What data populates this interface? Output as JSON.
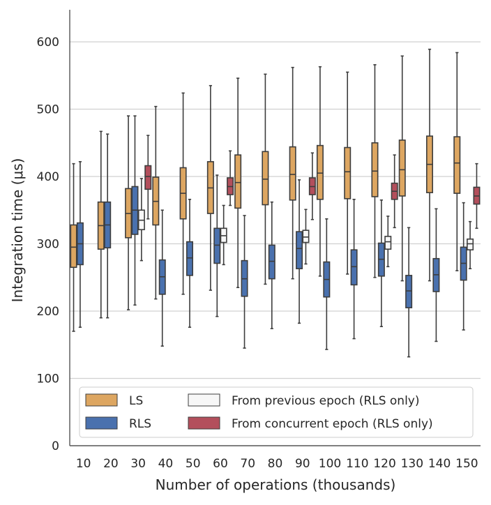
{
  "chart_data": {
    "type": "box",
    "xlabel": "Number of operations (thousands)",
    "ylabel": "Integration time (μs)",
    "ylim": [
      0,
      650
    ],
    "yticks": [
      0,
      100,
      200,
      300,
      400,
      500,
      600
    ],
    "categories": [
      "10",
      "20",
      "30",
      "40",
      "50",
      "60",
      "70",
      "80",
      "90",
      "100",
      "110",
      "120",
      "130",
      "140",
      "150"
    ],
    "grid": "horizontal",
    "legend_placement": "bottom",
    "colors": {
      "LS": "#dda661",
      "RLS": "#4a71ae",
      "Prev": "#f7f7f7",
      "Conc": "#b34f5c",
      "edge": "#3d3d3d",
      "grid": "#d0d0d0"
    },
    "series": [
      {
        "name": "LS",
        "key": "LS",
        "boxes": [
          {
            "x": "10",
            "whislo": 170,
            "q1": 265,
            "med": 295,
            "q3": 328,
            "whishi": 419
          },
          {
            "x": "20",
            "whislo": 190,
            "q1": 292,
            "med": 327,
            "q3": 362,
            "whishi": 467
          },
          {
            "x": "30",
            "whislo": 202,
            "q1": 309,
            "med": 345,
            "q3": 382,
            "whishi": 490
          },
          {
            "x": "40",
            "whislo": 218,
            "q1": 328,
            "med": 363,
            "q3": 399,
            "whishi": 504
          },
          {
            "x": "50",
            "whislo": 225,
            "q1": 337,
            "med": 375,
            "q3": 413,
            "whishi": 524
          },
          {
            "x": "60",
            "whislo": 231,
            "q1": 345,
            "med": 383,
            "q3": 422,
            "whishi": 535
          },
          {
            "x": "70",
            "whislo": 235,
            "q1": 353,
            "med": 391,
            "q3": 432,
            "whishi": 546
          },
          {
            "x": "80",
            "whislo": 240,
            "q1": 358,
            "med": 396,
            "q3": 437,
            "whishi": 552
          },
          {
            "x": "90",
            "whislo": 248,
            "q1": 365,
            "med": 403,
            "q3": 444,
            "whishi": 562
          },
          {
            "x": "100",
            "whislo": 252,
            "q1": 366,
            "med": 405,
            "q3": 446,
            "whishi": 563
          },
          {
            "x": "110",
            "whislo": 255,
            "q1": 367,
            "med": 407,
            "q3": 443,
            "whishi": 555
          },
          {
            "x": "120",
            "whislo": 250,
            "q1": 370,
            "med": 408,
            "q3": 450,
            "whishi": 566
          },
          {
            "x": "130",
            "whislo": 245,
            "q1": 371,
            "med": 410,
            "q3": 454,
            "whishi": 579
          },
          {
            "x": "140",
            "whislo": 245,
            "q1": 376,
            "med": 418,
            "q3": 460,
            "whishi": 589
          },
          {
            "x": "150",
            "whislo": 260,
            "q1": 375,
            "med": 420,
            "q3": 459,
            "whishi": 584
          }
        ]
      },
      {
        "name": "RLS",
        "key": "RLS",
        "boxes": [
          {
            "x": "10",
            "whislo": 176,
            "q1": 269,
            "med": 300,
            "q3": 331,
            "whishi": 422
          },
          {
            "x": "20",
            "whislo": 190,
            "q1": 294,
            "med": 328,
            "q3": 362,
            "whishi": 463
          },
          {
            "x": "30",
            "whislo": 209,
            "q1": 314,
            "med": 350,
            "q3": 385,
            "whishi": 490
          },
          {
            "x": "40",
            "whislo": 148,
            "q1": 225,
            "med": 251,
            "q3": 276,
            "whishi": 350
          },
          {
            "x": "50",
            "whislo": 176,
            "q1": 253,
            "med": 279,
            "q3": 303,
            "whishi": 366
          },
          {
            "x": "60",
            "whislo": 192,
            "q1": 271,
            "med": 298,
            "q3": 323,
            "whishi": 402
          },
          {
            "x": "70",
            "whislo": 145,
            "q1": 222,
            "med": 248,
            "q3": 275,
            "whishi": 342
          },
          {
            "x": "80",
            "whislo": 174,
            "q1": 248,
            "med": 274,
            "q3": 298,
            "whishi": 362
          },
          {
            "x": "90",
            "whislo": 182,
            "q1": 263,
            "med": 293,
            "q3": 318,
            "whishi": 395
          },
          {
            "x": "100",
            "whislo": 143,
            "q1": 221,
            "med": 247,
            "q3": 273,
            "whishi": 337
          },
          {
            "x": "110",
            "whislo": 159,
            "q1": 239,
            "med": 266,
            "q3": 291,
            "whishi": 366
          },
          {
            "x": "120",
            "whislo": 177,
            "q1": 252,
            "med": 277,
            "q3": 301,
            "whishi": 365
          },
          {
            "x": "130",
            "whislo": 132,
            "q1": 205,
            "med": 230,
            "q3": 253,
            "whishi": 324
          },
          {
            "x": "140",
            "whislo": 155,
            "q1": 229,
            "med": 254,
            "q3": 278,
            "whishi": 352
          },
          {
            "x": "150",
            "whislo": 172,
            "q1": 246,
            "med": 271,
            "q3": 295,
            "whishi": 361
          }
        ]
      },
      {
        "name": "From previous epoch (RLS only)",
        "key": "Prev",
        "boxes": [
          {
            "x": "30",
            "whislo": 275,
            "q1": 321,
            "med": 335,
            "q3": 350,
            "whishi": 397
          },
          {
            "x": "60",
            "whislo": 269,
            "q1": 302,
            "med": 312,
            "q3": 323,
            "whishi": 357
          },
          {
            "x": "90",
            "whislo": 270,
            "q1": 302,
            "med": 310,
            "q3": 320,
            "whishi": 351
          },
          {
            "x": "120",
            "whislo": 266,
            "q1": 292,
            "med": 303,
            "q3": 311,
            "whishi": 341
          },
          {
            "x": "150",
            "whislo": 263,
            "q1": 291,
            "med": 300,
            "q3": 307,
            "whishi": 333
          }
        ]
      },
      {
        "name": "From concurrent epoch (RLS only)",
        "key": "Conc",
        "boxes": [
          {
            "x": "30",
            "whislo": 337,
            "q1": 381,
            "med": 400,
            "q3": 416,
            "whishi": 461
          },
          {
            "x": "60",
            "whislo": 357,
            "q1": 373,
            "med": 385,
            "q3": 398,
            "whishi": 438
          },
          {
            "x": "90",
            "whislo": 336,
            "q1": 373,
            "med": 385,
            "q3": 398,
            "whishi": 435
          },
          {
            "x": "120",
            "whislo": 324,
            "q1": 366,
            "med": 378,
            "q3": 390,
            "whishi": 432
          },
          {
            "x": "150",
            "whislo": 323,
            "q1": 359,
            "med": 371,
            "q3": 384,
            "whishi": 419
          }
        ]
      }
    ]
  }
}
